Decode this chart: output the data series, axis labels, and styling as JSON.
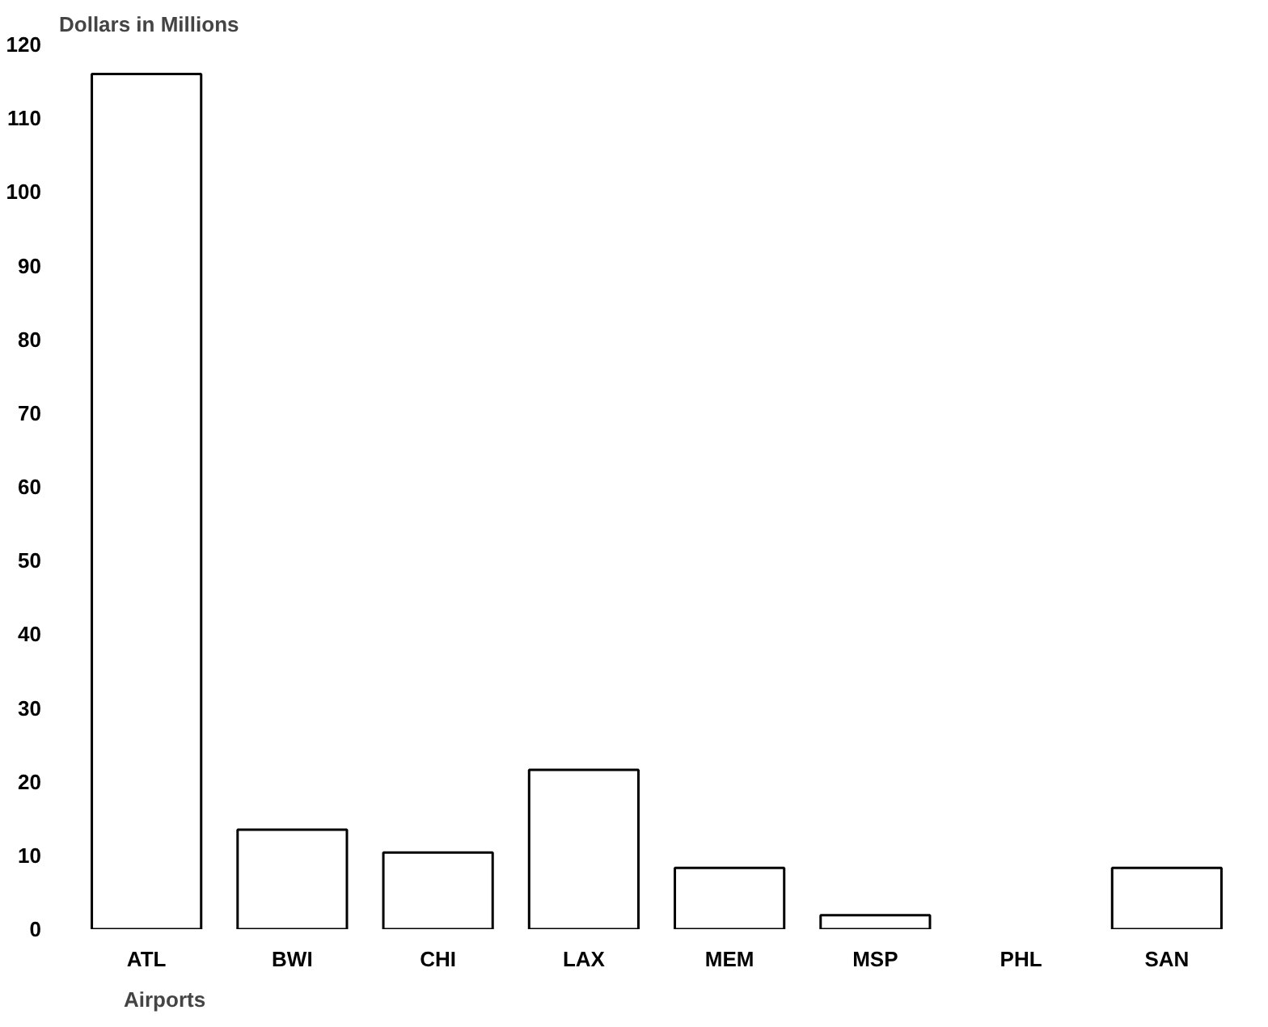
{
  "chart_data": {
    "type": "bar",
    "ylabel": "Dollars in Millions",
    "xlabel": "Airports",
    "categories": [
      "ATL",
      "BWI",
      "CHI",
      "LAX",
      "MEM",
      "MSP",
      "PHL",
      "SAN"
    ],
    "values": [
      116,
      13.5,
      10.4,
      21.6,
      8.3,
      1.9,
      0,
      8.3
    ],
    "color": "#ffffff",
    "ylim": [
      0,
      120
    ],
    "yticks": [
      0,
      10,
      20,
      30,
      40,
      50,
      60,
      70,
      80,
      90,
      100,
      110,
      120
    ],
    "grid": false
  }
}
